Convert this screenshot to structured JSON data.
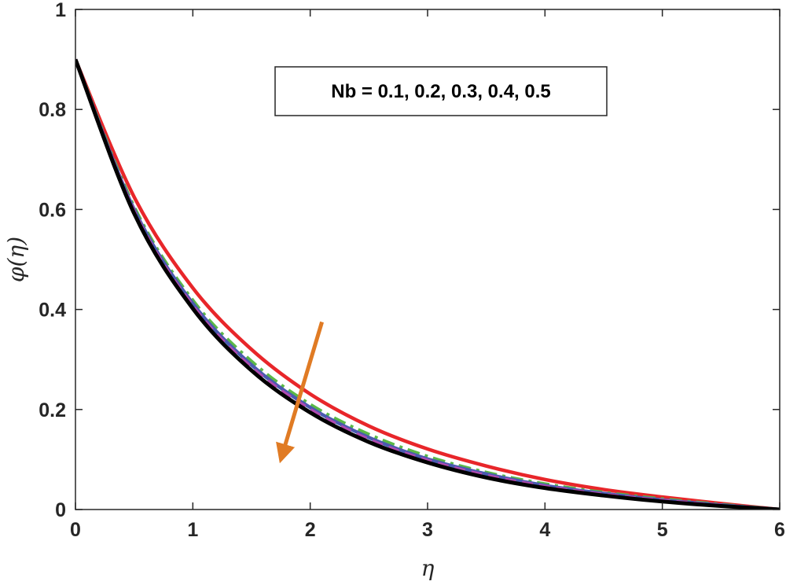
{
  "chart_data": {
    "type": "line",
    "title": "",
    "xlabel": "η",
    "ylabel": "φ(η)",
    "xlim": [
      0,
      6
    ],
    "ylim": [
      0,
      1
    ],
    "xticks": [
      "0",
      "1",
      "2",
      "3",
      "4",
      "5",
      "6"
    ],
    "yticks": [
      "0",
      "0.2",
      "0.4",
      "0.6",
      "0.8",
      "1"
    ],
    "grid": false,
    "annotation": "Nb = 0.1, 0.2, 0.3, 0.4, 0.5",
    "annotation_position": "top-center",
    "arrow": {
      "from": [
        2.1,
        0.375
      ],
      "to": [
        1.75,
        0.1
      ],
      "color": "#E07B24"
    },
    "x": [
      0,
      0.5,
      1,
      1.5,
      2,
      2.5,
      3,
      3.5,
      4,
      4.5,
      5,
      5.5,
      6
    ],
    "series": [
      {
        "color": "#E8262A",
        "style": "solid",
        "values": [
          0.9,
          0.625,
          0.443,
          0.32,
          0.231,
          0.167,
          0.121,
          0.087,
          0.06,
          0.04,
          0.025,
          0.012,
          0.0
        ]
      },
      {
        "color": "#5BB847",
        "style": "dashdot",
        "values": [
          0.9,
          0.605,
          0.418,
          0.296,
          0.21,
          0.15,
          0.106,
          0.074,
          0.051,
          0.034,
          0.021,
          0.01,
          0.0
        ]
      },
      {
        "color": "#4A5AB0",
        "style": "solid",
        "values": [
          0.9,
          0.6,
          0.412,
          0.289,
          0.204,
          0.144,
          0.101,
          0.071,
          0.048,
          0.032,
          0.019,
          0.009,
          0.0
        ]
      },
      {
        "color": "#B04AB0",
        "style": "dashed",
        "values": [
          0.9,
          0.596,
          0.407,
          0.284,
          0.2,
          0.14,
          0.098,
          0.068,
          0.046,
          0.03,
          0.018,
          0.008,
          0.0
        ]
      },
      {
        "color": "#000000",
        "style": "solid",
        "values": [
          0.9,
          0.592,
          0.402,
          0.278,
          0.194,
          0.135,
          0.094,
          0.064,
          0.043,
          0.028,
          0.016,
          0.007,
          0.0
        ]
      }
    ]
  }
}
